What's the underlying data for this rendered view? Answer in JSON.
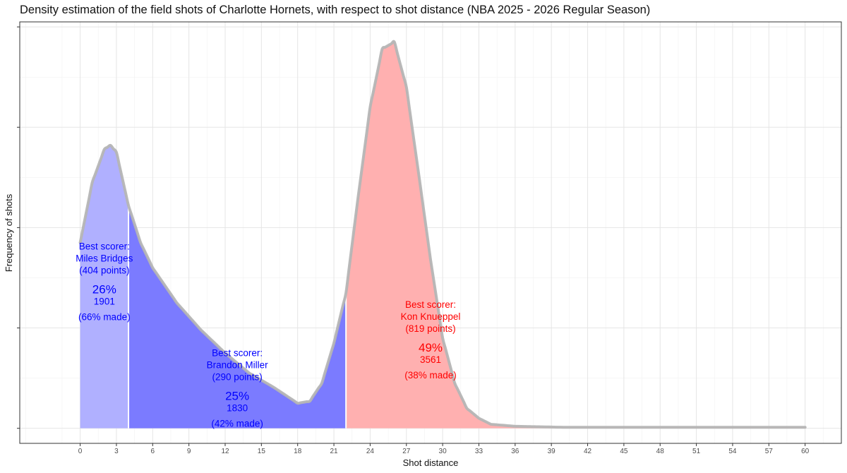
{
  "chart_data": {
    "type": "area",
    "title": "Density estimation of the field shots of Charlotte Hornets, with respect to shot distance (NBA 2025 - 2026 Regular Season)",
    "xlabel": "Shot distance",
    "ylabel": "Frequency of shots",
    "xlim": [
      -5,
      63
    ],
    "ylim": [
      -0.0015,
      0.0405
    ],
    "x_ticks": [
      0,
      3,
      6,
      9,
      12,
      15,
      18,
      21,
      24,
      27,
      30,
      33,
      36,
      39,
      42,
      45,
      48,
      51,
      54,
      57,
      60
    ],
    "y_ticks": [
      0,
      0.01,
      0.02,
      0.03,
      0.04
    ],
    "y_tick_labels_shown": false,
    "grid": true,
    "density_curve": {
      "x": [
        0,
        1,
        2,
        2.5,
        3,
        4,
        5,
        6,
        8,
        10,
        12,
        14,
        16,
        17,
        18,
        19,
        20,
        21,
        22,
        23,
        24,
        25,
        26,
        27,
        28,
        29,
        30,
        31,
        32,
        33,
        34,
        36,
        40,
        50,
        60
      ],
      "y": [
        0.0185,
        0.0245,
        0.0278,
        0.0282,
        0.0275,
        0.0222,
        0.0185,
        0.016,
        0.0125,
        0.0098,
        0.0075,
        0.0055,
        0.0041,
        0.0033,
        0.0025,
        0.0027,
        0.0045,
        0.0085,
        0.0135,
        0.023,
        0.032,
        0.0378,
        0.0385,
        0.034,
        0.0255,
        0.0168,
        0.009,
        0.0045,
        0.002,
        0.001,
        0.0004,
        0.0002,
        0.0001,
        0.0001,
        0.0001
      ]
    },
    "zones": [
      {
        "from": 0,
        "to": 4,
        "color": "#b0b0ff",
        "label_x": 2,
        "label_line": 0.0178,
        "scorer_heading": "Best scorer:",
        "scorer": "Miles Bridges",
        "points": "(404 points)",
        "pct": "26%",
        "shots": "1901",
        "made": "(66% made)",
        "text_color": "#0000ff"
      },
      {
        "from": 4,
        "to": 22,
        "color": "#7b7bff",
        "label_x": 13,
        "label_line": 0.0072,
        "scorer_heading": "Best scorer:",
        "scorer": "Brandon Miller",
        "points": "(290 points)",
        "pct": "25%",
        "shots": "1830",
        "made": "(42% made)",
        "text_color": "#0000ff"
      },
      {
        "from": 22,
        "to": 60,
        "color": "#ffb0b0",
        "label_x": 29,
        "label_line": 0.012,
        "scorer_heading": "Best scorer:",
        "scorer": "Kon Knueppel",
        "points": "(819 points)",
        "pct": "49%",
        "shots": "3561",
        "made": "(38% made)",
        "text_color": "#ff0000"
      }
    ],
    "curve_color": "#b5b5b5",
    "divider_color": "#ffffff"
  }
}
